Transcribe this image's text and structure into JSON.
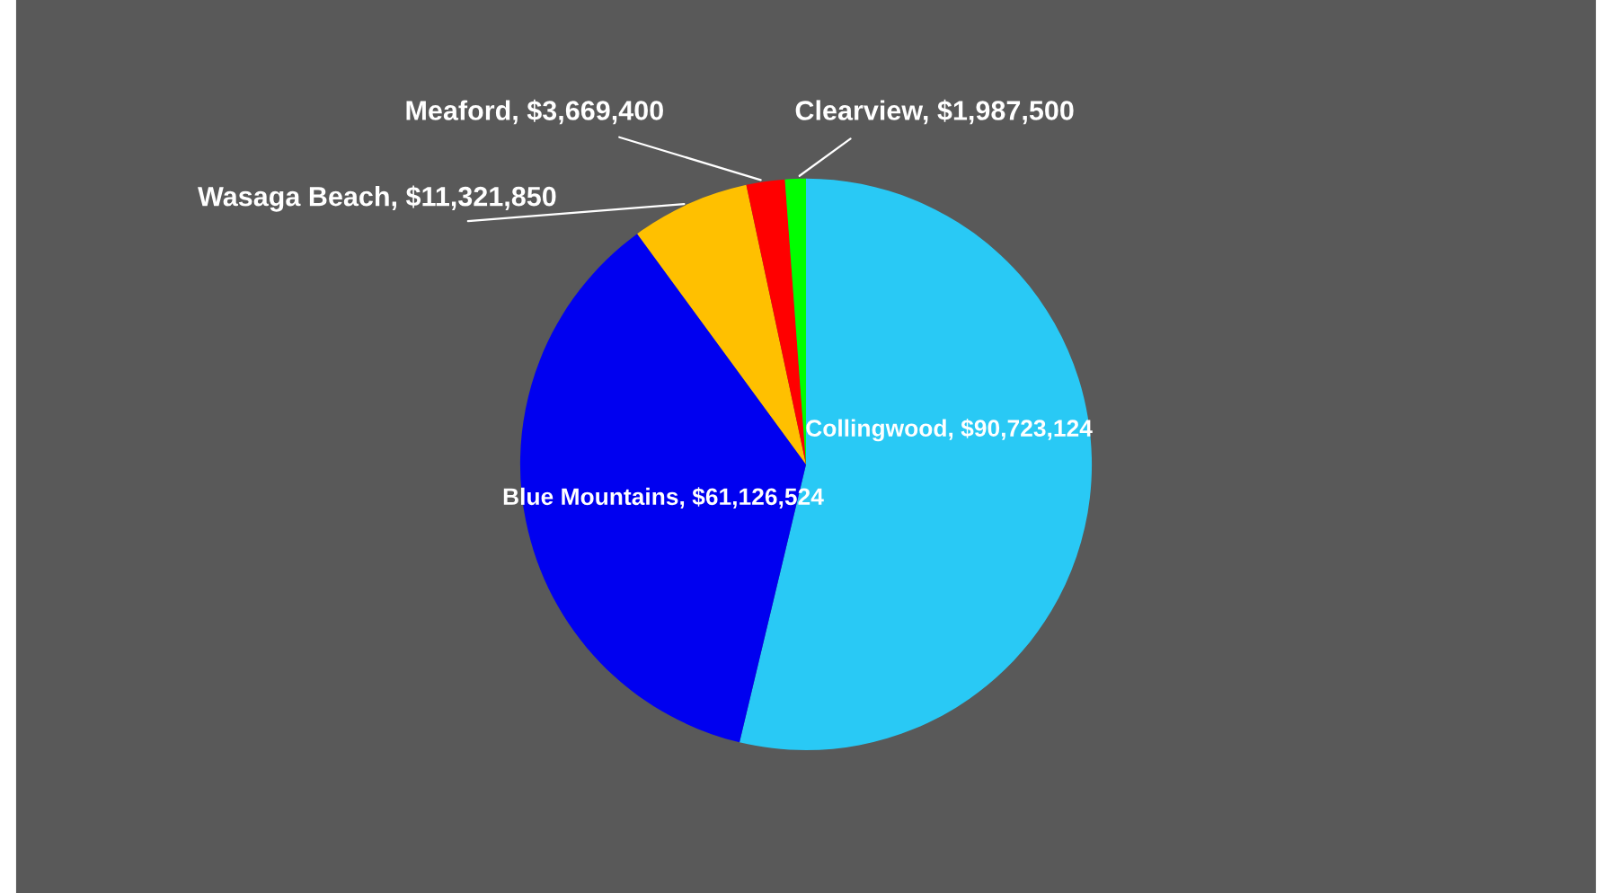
{
  "chart_data": {
    "type": "pie",
    "categories": [
      "Collingwood",
      "Blue Mountains",
      "Wasaga Beach",
      "Meaford",
      "Clearview"
    ],
    "values": [
      90723124,
      61126524,
      11321850,
      3669400,
      1987500
    ],
    "value_labels": [
      "$90,723,124",
      "$61,126,524",
      "$11,321,850",
      "$3,669,400",
      "$1,987,500"
    ],
    "colors": [
      "#29c9f5",
      "#0000f0",
      "#ffc000",
      "#ff0000",
      "#00ff00"
    ],
    "legend": false
  }
}
